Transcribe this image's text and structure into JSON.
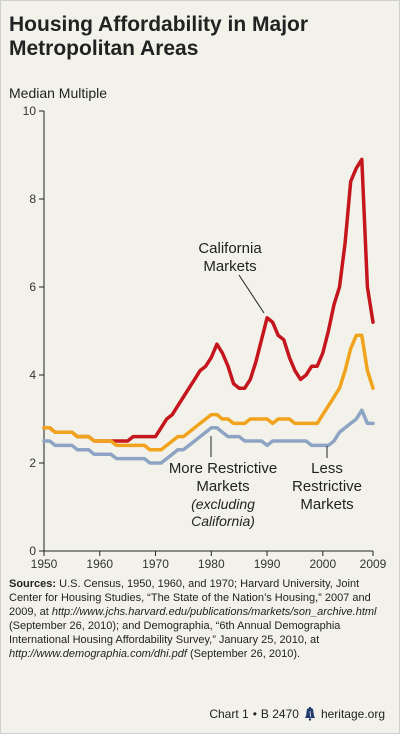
{
  "title": "Housing Affordability in Major Metropolitan Areas",
  "sources": {
    "lead": "Sources:",
    "p1": " U.S. Census, 1950, 1960, and 1970; Harvard University, Joint Center for Housing Studies, “The State of the Nation’s Housing,” 2007 and 2009, at ",
    "url1": "http://www.jchs.harvard.edu/publications/markets/son_archive.html",
    "p2": " (September 26, 2010); and Demographia, “6th Annual Demographia International Housing Affordability Survey,” January 25, 2010, at ",
    "url2": "http://www.demographia.com/dhi.pdf",
    "p3": " (September 26, 2010)."
  },
  "footer": {
    "chart": "Chart 1",
    "sep": "•",
    "ref": "B 2470",
    "site": "heritage.org"
  },
  "colors": {
    "california": "#c4161c",
    "more_restrictive": "#f2a31d",
    "less_restrictive": "#8ea4c4",
    "axis": "#222222",
    "background": "#f3f2ea",
    "bell": "#1e3a6e"
  },
  "icons": {
    "footer_logo": "liberty-bell-icon"
  },
  "chart_data": {
    "type": "line",
    "ylabel": "Median Multiple",
    "xlabel": "",
    "xlim": [
      1950,
      2009
    ],
    "ylim": [
      0,
      10
    ],
    "xticks": [
      "1950",
      "1960",
      "1970",
      "1980",
      "1990",
      "2000",
      "2009"
    ],
    "yticks": [
      "0",
      "2",
      "4",
      "6",
      "8",
      "10"
    ],
    "grid": false,
    "annotations": [
      {
        "label": [
          "California",
          "Markets"
        ],
        "series": "California"
      },
      {
        "label": [
          "More Restrictive",
          "Markets"
        ],
        "sub": [
          "(excluding",
          "California)"
        ],
        "series": "More Restrictive"
      },
      {
        "label": [
          "Less",
          "Restrictive",
          "Markets"
        ],
        "series": "Less Restrictive"
      }
    ],
    "series": [
      {
        "key": "california",
        "name": "California Markets",
        "x": [
          1950,
          1951,
          1952,
          1953,
          1954,
          1955,
          1956,
          1957,
          1958,
          1959,
          1960,
          1961,
          1962,
          1963,
          1964,
          1965,
          1966,
          1967,
          1968,
          1969,
          1970,
          1971,
          1972,
          1973,
          1974,
          1975,
          1976,
          1977,
          1978,
          1979,
          1980,
          1981,
          1982,
          1983,
          1984,
          1985,
          1986,
          1987,
          1988,
          1989,
          1990,
          1991,
          1992,
          1993,
          1994,
          1995,
          1996,
          1997,
          1998,
          1999,
          2000,
          2001,
          2002,
          2003,
          2004,
          2005,
          2006,
          2007,
          2008,
          2009
        ],
        "values": [
          2.8,
          2.8,
          2.7,
          2.7,
          2.7,
          2.7,
          2.6,
          2.6,
          2.6,
          2.5,
          2.5,
          2.5,
          2.5,
          2.5,
          2.5,
          2.5,
          2.6,
          2.6,
          2.6,
          2.6,
          2.6,
          2.8,
          3.0,
          3.1,
          3.3,
          3.5,
          3.7,
          3.9,
          4.1,
          4.2,
          4.4,
          4.7,
          4.5,
          4.2,
          3.8,
          3.7,
          3.7,
          3.9,
          4.3,
          4.8,
          5.3,
          5.2,
          4.9,
          4.8,
          4.4,
          4.1,
          3.9,
          4.0,
          4.2,
          4.2,
          4.5,
          5.0,
          5.6,
          6.0,
          7.0,
          8.4,
          8.7,
          8.9,
          6.0,
          5.2
        ]
      },
      {
        "key": "more_restrictive",
        "name": "More Restrictive Markets",
        "x": [
          1950,
          1951,
          1952,
          1953,
          1954,
          1955,
          1956,
          1957,
          1958,
          1959,
          1960,
          1961,
          1962,
          1963,
          1964,
          1965,
          1966,
          1967,
          1968,
          1969,
          1970,
          1971,
          1972,
          1973,
          1974,
          1975,
          1976,
          1977,
          1978,
          1979,
          1980,
          1981,
          1982,
          1983,
          1984,
          1985,
          1986,
          1987,
          1988,
          1989,
          1990,
          1991,
          1992,
          1993,
          1994,
          1995,
          1996,
          1997,
          1998,
          1999,
          2000,
          2001,
          2002,
          2003,
          2004,
          2005,
          2006,
          2007,
          2008,
          2009
        ],
        "values": [
          2.8,
          2.8,
          2.7,
          2.7,
          2.7,
          2.7,
          2.6,
          2.6,
          2.6,
          2.5,
          2.5,
          2.5,
          2.5,
          2.4,
          2.4,
          2.4,
          2.4,
          2.4,
          2.4,
          2.3,
          2.3,
          2.3,
          2.4,
          2.5,
          2.6,
          2.6,
          2.7,
          2.8,
          2.9,
          3.0,
          3.1,
          3.1,
          3.0,
          3.0,
          2.9,
          2.9,
          2.9,
          3.0,
          3.0,
          3.0,
          3.0,
          2.9,
          3.0,
          3.0,
          3.0,
          2.9,
          2.9,
          2.9,
          2.9,
          2.9,
          3.1,
          3.3,
          3.5,
          3.7,
          4.1,
          4.6,
          4.9,
          4.9,
          4.1,
          3.7
        ]
      },
      {
        "key": "less_restrictive",
        "name": "Less Restrictive Markets",
        "x": [
          1950,
          1951,
          1952,
          1953,
          1954,
          1955,
          1956,
          1957,
          1958,
          1959,
          1960,
          1961,
          1962,
          1963,
          1964,
          1965,
          1966,
          1967,
          1968,
          1969,
          1970,
          1971,
          1972,
          1973,
          1974,
          1975,
          1976,
          1977,
          1978,
          1979,
          1980,
          1981,
          1982,
          1983,
          1984,
          1985,
          1986,
          1987,
          1988,
          1989,
          1990,
          1991,
          1992,
          1993,
          1994,
          1995,
          1996,
          1997,
          1998,
          1999,
          2000,
          2001,
          2002,
          2003,
          2004,
          2005,
          2006,
          2007,
          2008,
          2009
        ],
        "values": [
          2.5,
          2.5,
          2.4,
          2.4,
          2.4,
          2.4,
          2.3,
          2.3,
          2.3,
          2.2,
          2.2,
          2.2,
          2.2,
          2.1,
          2.1,
          2.1,
          2.1,
          2.1,
          2.1,
          2.0,
          2.0,
          2.0,
          2.1,
          2.2,
          2.3,
          2.3,
          2.4,
          2.5,
          2.6,
          2.7,
          2.8,
          2.8,
          2.7,
          2.6,
          2.6,
          2.6,
          2.5,
          2.5,
          2.5,
          2.5,
          2.4,
          2.5,
          2.5,
          2.5,
          2.5,
          2.5,
          2.5,
          2.5,
          2.4,
          2.4,
          2.4,
          2.4,
          2.5,
          2.7,
          2.8,
          2.9,
          3.0,
          3.2,
          2.9,
          2.9
        ]
      }
    ]
  }
}
